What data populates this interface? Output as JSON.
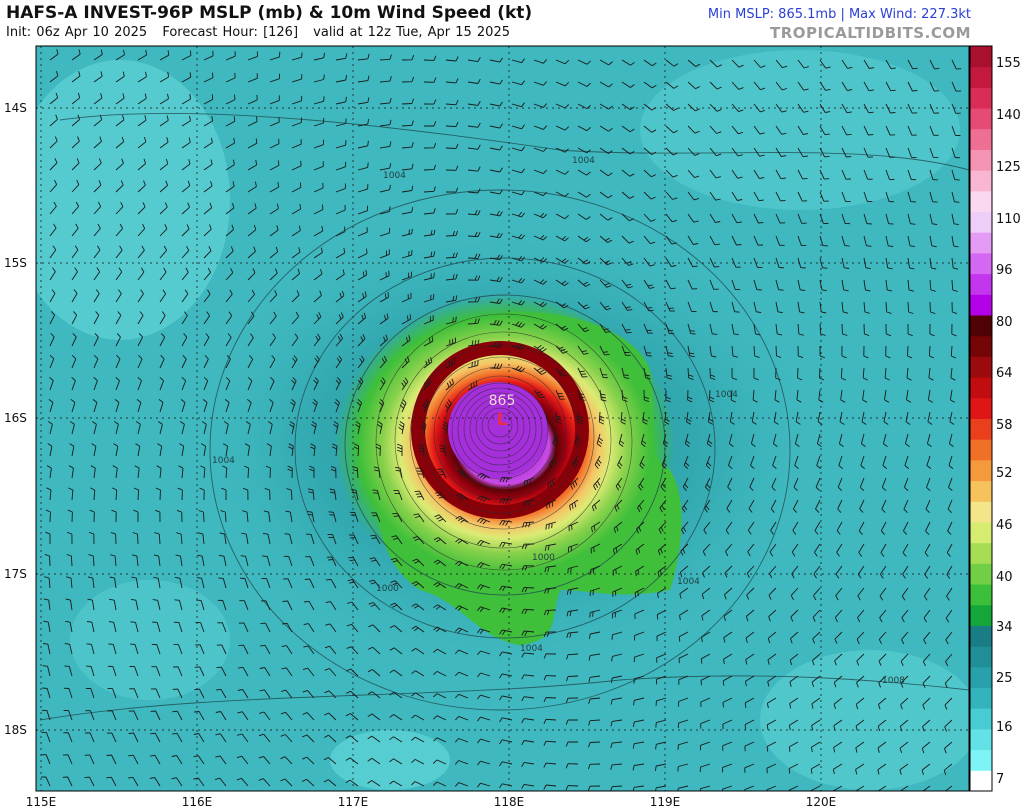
{
  "header": {
    "title": "HAFS-A INVEST-96P MSLP (mb) & 10m Wind Speed (kt)",
    "init": "Init: 06z Apr 10 2025",
    "forecast_hour": "Forecast Hour: [126]",
    "valid": "valid at 12z Tue, Apr 15 2025",
    "stats": "Min MSLP: 865.1mb | Max Wind: 227.3kt",
    "brand": "TROPICALTIDBITS.COM"
  },
  "map": {
    "lat_labels": [
      "14S",
      "15S",
      "16S",
      "17S",
      "18S"
    ],
    "lon_labels": [
      "115E",
      "116E",
      "117E",
      "118E",
      "119E",
      "120E"
    ],
    "center_label": "865",
    "center_symbol": "L",
    "contour_labels": [
      "1004",
      "1004",
      "1004",
      "1004",
      "1004",
      "1004",
      "1000",
      "1000",
      "1008"
    ],
    "colors": {
      "ocean": "#3fb8bf",
      "eye": "#9d2bd6",
      "eyewall": "#a0000f",
      "gale": "#3fbf3a"
    }
  },
  "colorbar": {
    "labels": [
      "155",
      "140",
      "125",
      "110",
      "96",
      "80",
      "64",
      "58",
      "52",
      "46",
      "40",
      "34",
      "25",
      "16",
      "7"
    ],
    "colors": [
      "#ffffff",
      "#7ff4f6",
      "#62e2e6",
      "#47ccd2",
      "#33b3bb",
      "#28a1aa",
      "#1f8e96",
      "#1a7c85",
      "#15a63a",
      "#3cbf3a",
      "#70cf44",
      "#a6dd55",
      "#d5ec70",
      "#f2e58a",
      "#f6c25c",
      "#f59a3c",
      "#f07028",
      "#ea3f1d",
      "#e01515",
      "#c10d10",
      "#9b0a0c",
      "#750507",
      "#4f0204",
      "#b400e6",
      "#c336ee",
      "#d468f3",
      "#e39bf6",
      "#eecdf8",
      "#fad8f0",
      "#f8b6d2",
      "#f593b4",
      "#ee6f93",
      "#e64b73",
      "#d92c57",
      "#c3193f",
      "#a8102e"
    ]
  }
}
